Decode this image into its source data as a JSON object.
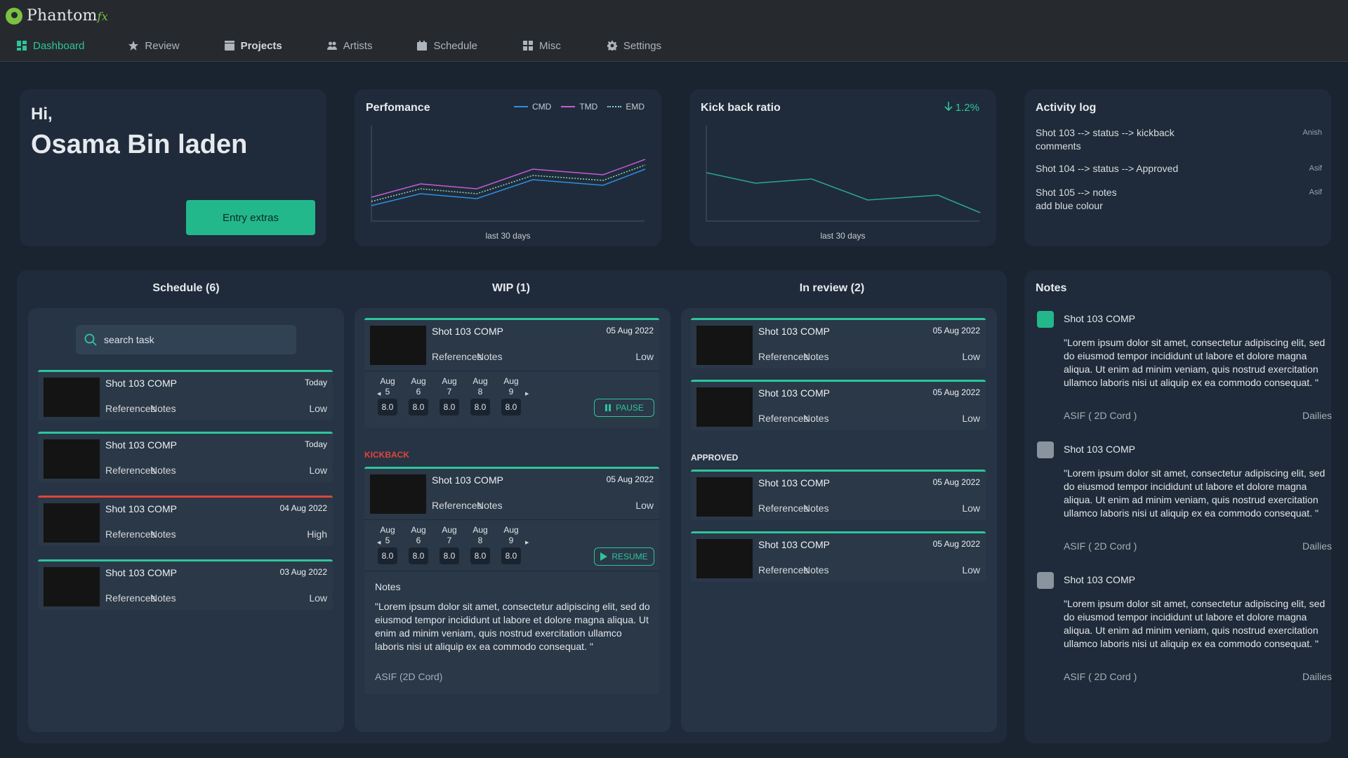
{
  "app": {
    "logo_main": "Phantom",
    "logo_fx": "fx"
  },
  "nav": [
    {
      "label": "Dashboard",
      "icon": "dashboard-icon"
    },
    {
      "label": "Review",
      "icon": "star-icon"
    },
    {
      "label": "Projects",
      "icon": "clapperboard-icon"
    },
    {
      "label": "Artists",
      "icon": "people-icon"
    },
    {
      "label": "Schedule",
      "icon": "calendar-icon"
    },
    {
      "label": "Misc",
      "icon": "grid-icon"
    },
    {
      "label": "Settings",
      "icon": "gear-icon"
    }
  ],
  "greeting": {
    "hi": "Hi,",
    "name": "Osama Bin laden",
    "button": "Entry extras"
  },
  "performance": {
    "title": "Perfomance",
    "caption": "last 30 days",
    "legend": [
      "CMD",
      "TMD",
      "EMD"
    ]
  },
  "kickback": {
    "title": "Kick back ratio",
    "value": "1.2%",
    "caption": "last 30 days"
  },
  "activity": {
    "title": "Activity log",
    "items": [
      {
        "line1": "Shot 103 --> status --> kickback",
        "line2": "comments",
        "user": "Anish"
      },
      {
        "line1": "Shot 104 --> status --> Approved",
        "line2": "",
        "user": "Asif"
      },
      {
        "line1": "Shot 105 --> notes",
        "line2": "add blue colour",
        "user": "Asif"
      }
    ]
  },
  "columns": {
    "schedule": "Schedule (6)",
    "wip": "WIP (1)",
    "review": "In review (2)"
  },
  "search": {
    "placeholder": "search task"
  },
  "task_labels": {
    "refs": "References",
    "notes": "Notes"
  },
  "schedule_tasks": [
    {
      "title": "Shot 103 COMP",
      "date": "Today",
      "priority": "Low"
    },
    {
      "title": "Shot 103 COMP",
      "date": "Today",
      "priority": "Low"
    },
    {
      "title": "Shot 103 COMP",
      "date": "04 Aug 2022",
      "priority": "High"
    },
    {
      "title": "Shot 103 COMP",
      "date": "03 Aug 2022",
      "priority": "Low"
    }
  ],
  "wip_task": {
    "title": "Shot 103 COMP",
    "date": "05 Aug 2022",
    "priority": "Low",
    "days": [
      {
        "m": "Aug",
        "d": "5",
        "h": "8.0"
      },
      {
        "m": "Aug",
        "d": "6",
        "h": "8.0"
      },
      {
        "m": "Aug",
        "d": "7",
        "h": "8.0"
      },
      {
        "m": "Aug",
        "d": "8",
        "h": "8.0"
      },
      {
        "m": "Aug",
        "d": "9",
        "h": "8.0"
      }
    ],
    "button": "PAUSE"
  },
  "kickback_section": {
    "label": "KICKBACK",
    "title": "Shot 103 COMP",
    "date": "05 Aug 2022",
    "priority": "Low",
    "days": [
      {
        "m": "Aug",
        "d": "5",
        "h": "8.0"
      },
      {
        "m": "Aug",
        "d": "6",
        "h": "8.0"
      },
      {
        "m": "Aug",
        "d": "7",
        "h": "8.0"
      },
      {
        "m": "Aug",
        "d": "8",
        "h": "8.0"
      },
      {
        "m": "Aug",
        "d": "9",
        "h": "8.0"
      }
    ],
    "button": "RESUME",
    "notes_label": "Notes",
    "notes_text": "\"Lorem ipsum dolor sit amet, consectetur adipiscing elit, sed do eiusmod tempor incididunt ut labore et dolore magna aliqua. Ut enim ad minim veniam, quis nostrud exercitation ullamco laboris nisi ut aliquip ex ea commodo consequat. \"",
    "notes_author": "ASIF (2D Cord)"
  },
  "review_tasks": [
    {
      "title": "Shot 103 COMP",
      "date": "05 Aug 2022",
      "priority": "Low"
    },
    {
      "title": "Shot 103 COMP",
      "date": "05 Aug 2022",
      "priority": "Low"
    }
  ],
  "approved_label": "APPROVED",
  "approved_tasks": [
    {
      "title": "Shot 103 COMP",
      "date": "05 Aug 2022",
      "priority": "Low"
    },
    {
      "title": "Shot 103 COMP",
      "date": "05 Aug 2022",
      "priority": "Low"
    }
  ],
  "notes": {
    "title": "Notes",
    "items": [
      {
        "title": "Shot 103 COMP",
        "body": "\"Lorem ipsum dolor sit amet, consectetur adipiscing elit, sed do eiusmod tempor incididunt ut labore et dolore magna aliqua. Ut enim ad minim veniam, quis nostrud exercitation ullamco laboris nisi ut aliquip ex ea commodo consequat. \"",
        "author": "ASIF ( 2D Cord )",
        "tag": "Dailies",
        "icon_color": "#22b88c"
      },
      {
        "title": "Shot 103 COMP",
        "body": "\"Lorem ipsum dolor sit amet, consectetur adipiscing elit, sed do eiusmod tempor incididunt ut labore et dolore magna aliqua. Ut enim ad minim veniam, quis nostrud exercitation ullamco laboris nisi ut aliquip ex ea commodo consequat. \"",
        "author": "ASIF ( 2D Cord )",
        "tag": "Dailies",
        "icon_color": "#8a949e"
      },
      {
        "title": "Shot 103 COMP",
        "body": "\"Lorem ipsum dolor sit amet, consectetur adipiscing elit, sed do eiusmod tempor incididunt ut labore et dolore magna aliqua. Ut enim ad minim veniam, quis nostrud exercitation ullamco laboris nisi ut aliquip ex ea commodo consequat. \"",
        "author": "ASIF ( 2D Cord )",
        "tag": "Dailies",
        "icon_color": "#8a949e"
      }
    ]
  },
  "colors": {
    "accent": "#2ec59a",
    "danger": "#e0453a",
    "cmd": "#2f8fe0",
    "tmd": "#c45bd6",
    "emd": "#8fd6b8",
    "kickback_line": "#2aa889"
  }
}
